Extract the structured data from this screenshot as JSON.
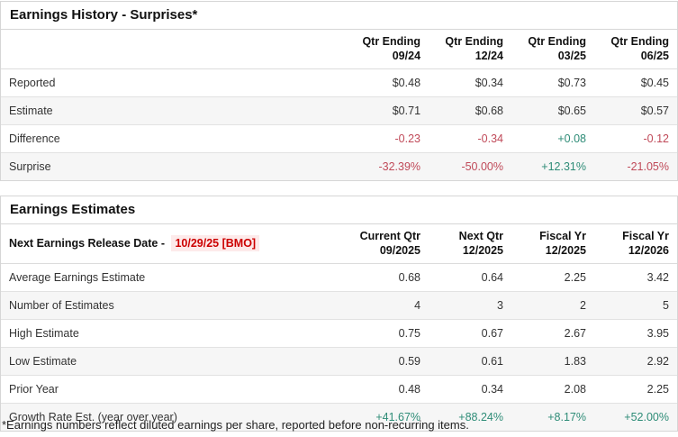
{
  "colors": {
    "negative": "#c04a59",
    "positive": "#2e8c77",
    "release_date_text": "#cc0000",
    "release_date_bg": "#fdeaea",
    "row_stripe": "#f6f6f6",
    "border": "#d6d6d6"
  },
  "surprises_table": {
    "title": "Earnings History - Surprises*",
    "columns": [
      {
        "line1": "Qtr Ending",
        "line2": "09/24"
      },
      {
        "line1": "Qtr Ending",
        "line2": "12/24"
      },
      {
        "line1": "Qtr Ending",
        "line2": "03/25"
      },
      {
        "line1": "Qtr Ending",
        "line2": "06/25"
      }
    ],
    "rows": [
      {
        "label": "Reported",
        "values": [
          "$0.48",
          "$0.34",
          "$0.73",
          "$0.45"
        ],
        "tones": [
          "",
          "",
          "",
          ""
        ]
      },
      {
        "label": "Estimate",
        "values": [
          "$0.71",
          "$0.68",
          "$0.65",
          "$0.57"
        ],
        "tones": [
          "",
          "",
          "",
          ""
        ]
      },
      {
        "label": "Difference",
        "values": [
          "-0.23",
          "-0.34",
          "+0.08",
          "-0.12"
        ],
        "tones": [
          "neg",
          "neg",
          "pos",
          "neg"
        ]
      },
      {
        "label": "Surprise",
        "values": [
          "-32.39%",
          "-50.00%",
          "+12.31%",
          "-21.05%"
        ],
        "tones": [
          "neg",
          "neg",
          "pos",
          "neg"
        ]
      }
    ]
  },
  "estimates_table": {
    "title": "Earnings Estimates",
    "release_label": "Next Earnings Release Date - ",
    "release_date": "10/29/25 [BMO]",
    "columns": [
      {
        "line1": "Current Qtr",
        "line2": "09/2025"
      },
      {
        "line1": "Next Qtr",
        "line2": "12/2025"
      },
      {
        "line1": "Fiscal Yr",
        "line2": "12/2025"
      },
      {
        "line1": "Fiscal Yr",
        "line2": "12/2026"
      }
    ],
    "rows": [
      {
        "label": "Average Earnings Estimate",
        "values": [
          "0.68",
          "0.64",
          "2.25",
          "3.42"
        ],
        "tones": [
          "",
          "",
          "",
          ""
        ]
      },
      {
        "label": "Number of Estimates",
        "values": [
          "4",
          "3",
          "2",
          "5"
        ],
        "tones": [
          "",
          "",
          "",
          ""
        ]
      },
      {
        "label": "High Estimate",
        "values": [
          "0.75",
          "0.67",
          "2.67",
          "3.95"
        ],
        "tones": [
          "",
          "",
          "",
          ""
        ]
      },
      {
        "label": "Low Estimate",
        "values": [
          "0.59",
          "0.61",
          "1.83",
          "2.92"
        ],
        "tones": [
          "",
          "",
          "",
          ""
        ]
      },
      {
        "label": "Prior Year",
        "values": [
          "0.48",
          "0.34",
          "2.08",
          "2.25"
        ],
        "tones": [
          "",
          "",
          "",
          ""
        ]
      },
      {
        "label": "Growth Rate Est. (year over year)",
        "values": [
          "+41.67%",
          "+88.24%",
          "+8.17%",
          "+52.00%"
        ],
        "tones": [
          "pos",
          "pos",
          "pos",
          "pos"
        ]
      }
    ]
  },
  "footnote": "*Earnings numbers reflect diluted earnings per share, reported before non-recurring items."
}
